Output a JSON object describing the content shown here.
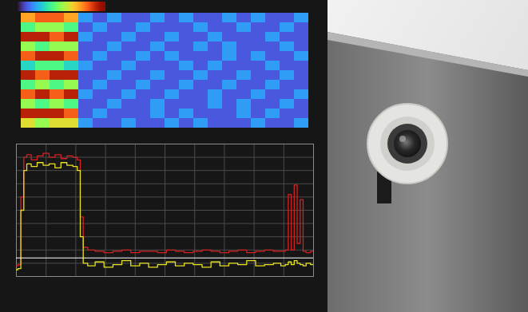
{
  "chart_data": [
    {
      "type": "heatmap",
      "tick_labels": false,
      "zlim": [
        0,
        10
      ],
      "values": [
        [
          7,
          8,
          8,
          7,
          2,
          1,
          2,
          1,
          1,
          2,
          1,
          2,
          1,
          1,
          2,
          1,
          2,
          1,
          1,
          2
        ],
        [
          4,
          5,
          5,
          4,
          1,
          2,
          1,
          1,
          2,
          1,
          1,
          1,
          2,
          1,
          1,
          2,
          1,
          1,
          2,
          1
        ],
        [
          9,
          9,
          8,
          9,
          2,
          1,
          1,
          2,
          1,
          1,
          2,
          1,
          1,
          2,
          1,
          1,
          1,
          2,
          1,
          1
        ],
        [
          5,
          4,
          5,
          5,
          1,
          1,
          2,
          1,
          1,
          2,
          1,
          1,
          2,
          1,
          2,
          1,
          1,
          1,
          2,
          1
        ],
        [
          8,
          9,
          9,
          8,
          1,
          2,
          1,
          1,
          2,
          1,
          2,
          1,
          1,
          1,
          2,
          1,
          2,
          1,
          1,
          2
        ],
        [
          3,
          4,
          4,
          3,
          2,
          1,
          1,
          2,
          1,
          1,
          1,
          2,
          1,
          2,
          1,
          1,
          1,
          2,
          1,
          1
        ],
        [
          9,
          8,
          9,
          9,
          1,
          1,
          2,
          1,
          1,
          2,
          1,
          1,
          2,
          1,
          1,
          2,
          1,
          1,
          2,
          1
        ],
        [
          4,
          5,
          4,
          5,
          1,
          2,
          1,
          1,
          2,
          1,
          1,
          2,
          1,
          1,
          2,
          1,
          1,
          2,
          1,
          1
        ],
        [
          8,
          9,
          8,
          9,
          2,
          1,
          1,
          2,
          1,
          1,
          2,
          1,
          1,
          2,
          1,
          1,
          2,
          1,
          1,
          2
        ],
        [
          5,
          4,
          5,
          4,
          1,
          1,
          2,
          1,
          1,
          2,
          1,
          1,
          1,
          2,
          1,
          2,
          1,
          1,
          2,
          1
        ],
        [
          9,
          9,
          9,
          8,
          1,
          2,
          1,
          1,
          1,
          2,
          1,
          2,
          1,
          1,
          1,
          2,
          1,
          2,
          1,
          1
        ],
        [
          6,
          5,
          6,
          6,
          2,
          1,
          1,
          2,
          1,
          1,
          2,
          1,
          2,
          1,
          1,
          1,
          2,
          1,
          1,
          2
        ]
      ]
    },
    {
      "type": "line",
      "tick_labels": false,
      "grid": true,
      "xlim": [
        0,
        100
      ],
      "xticks": [
        0,
        10,
        20,
        30,
        40,
        50,
        60,
        70,
        80,
        90,
        100
      ],
      "ylim": [
        0,
        100
      ],
      "yticks": [
        0,
        10,
        20,
        30,
        40,
        50,
        60,
        70,
        80,
        90,
        100
      ],
      "reference_value": 14,
      "x": [
        0,
        1,
        2,
        3,
        4,
        6,
        8,
        10,
        12,
        14,
        16,
        18,
        20,
        21,
        22,
        23,
        25,
        28,
        31,
        34,
        37,
        40,
        43,
        46,
        49,
        52,
        55,
        58,
        61,
        64,
        67,
        70,
        73,
        76,
        79,
        82,
        85,
        88,
        90,
        91,
        92,
        93,
        94,
        95,
        96,
        97,
        98,
        100
      ],
      "series": [
        {
          "color": "#d42020",
          "values": [
            8,
            9,
            60,
            90,
            92,
            88,
            91,
            93,
            90,
            92,
            89,
            91,
            90,
            88,
            45,
            22,
            20,
            19,
            18,
            19,
            20,
            18,
            19,
            19,
            18,
            20,
            19,
            18,
            19,
            20,
            19,
            18,
            19,
            20,
            18,
            19,
            20,
            19,
            19,
            20,
            62,
            20,
            69,
            25,
            58,
            19,
            18,
            19
          ]
        },
        {
          "color": "#e6e020",
          "values": [
            5,
            6,
            50,
            80,
            85,
            83,
            86,
            84,
            85,
            82,
            86,
            84,
            83,
            80,
            30,
            10,
            8,
            11,
            7,
            9,
            12,
            8,
            10,
            7,
            9,
            11,
            8,
            10,
            9,
            7,
            11,
            8,
            10,
            9,
            12,
            8,
            9,
            10,
            8,
            9,
            11,
            9,
            12,
            10,
            9,
            8,
            10,
            9
          ]
        }
      ]
    }
  ]
}
